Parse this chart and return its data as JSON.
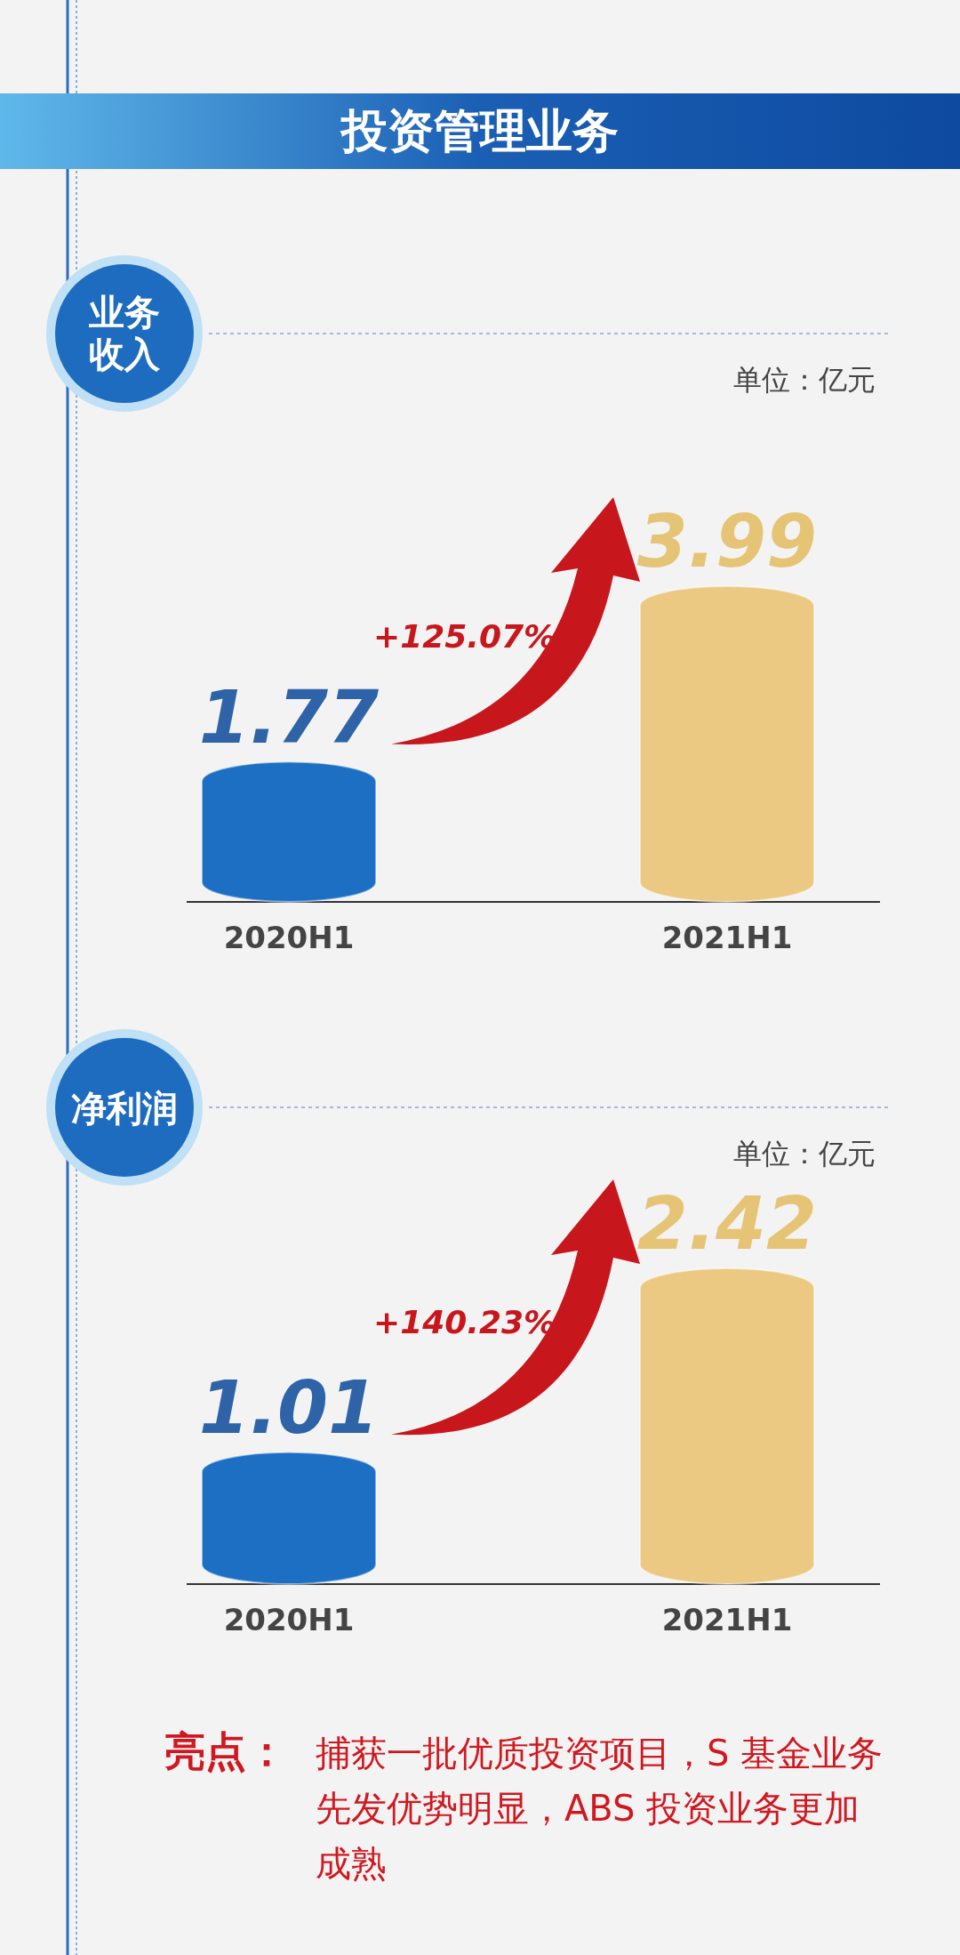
{
  "chart_data": [
    {
      "type": "other",
      "title": "投资管理业务"
    },
    {
      "type": "bar",
      "title": "业务收入",
      "categories": [
        "2020H1",
        "2021H1"
      ],
      "values": [
        1.77,
        3.99
      ],
      "colors": [
        "#1d6fc4",
        "#ebc982"
      ],
      "data_labels": true,
      "annotations": [
        "单位：亿元",
        "+125.07%"
      ]
    },
    {
      "type": "bar",
      "title": "净利润",
      "categories": [
        "2020H1",
        "2021H1"
      ],
      "values": [
        1.01,
        2.42
      ],
      "colors": [
        "#1d6fc4",
        "#ebc982"
      ],
      "data_labels": true,
      "annotations": [
        "单位：亿元",
        "+140.23%"
      ]
    },
    {
      "type": "other",
      "title": "亮点：",
      "annotations": [
        "捕获一批优质投资项目，S 基金业务先发优势明显，ABS 投资业务更加成熟"
      ]
    }
  ]
}
